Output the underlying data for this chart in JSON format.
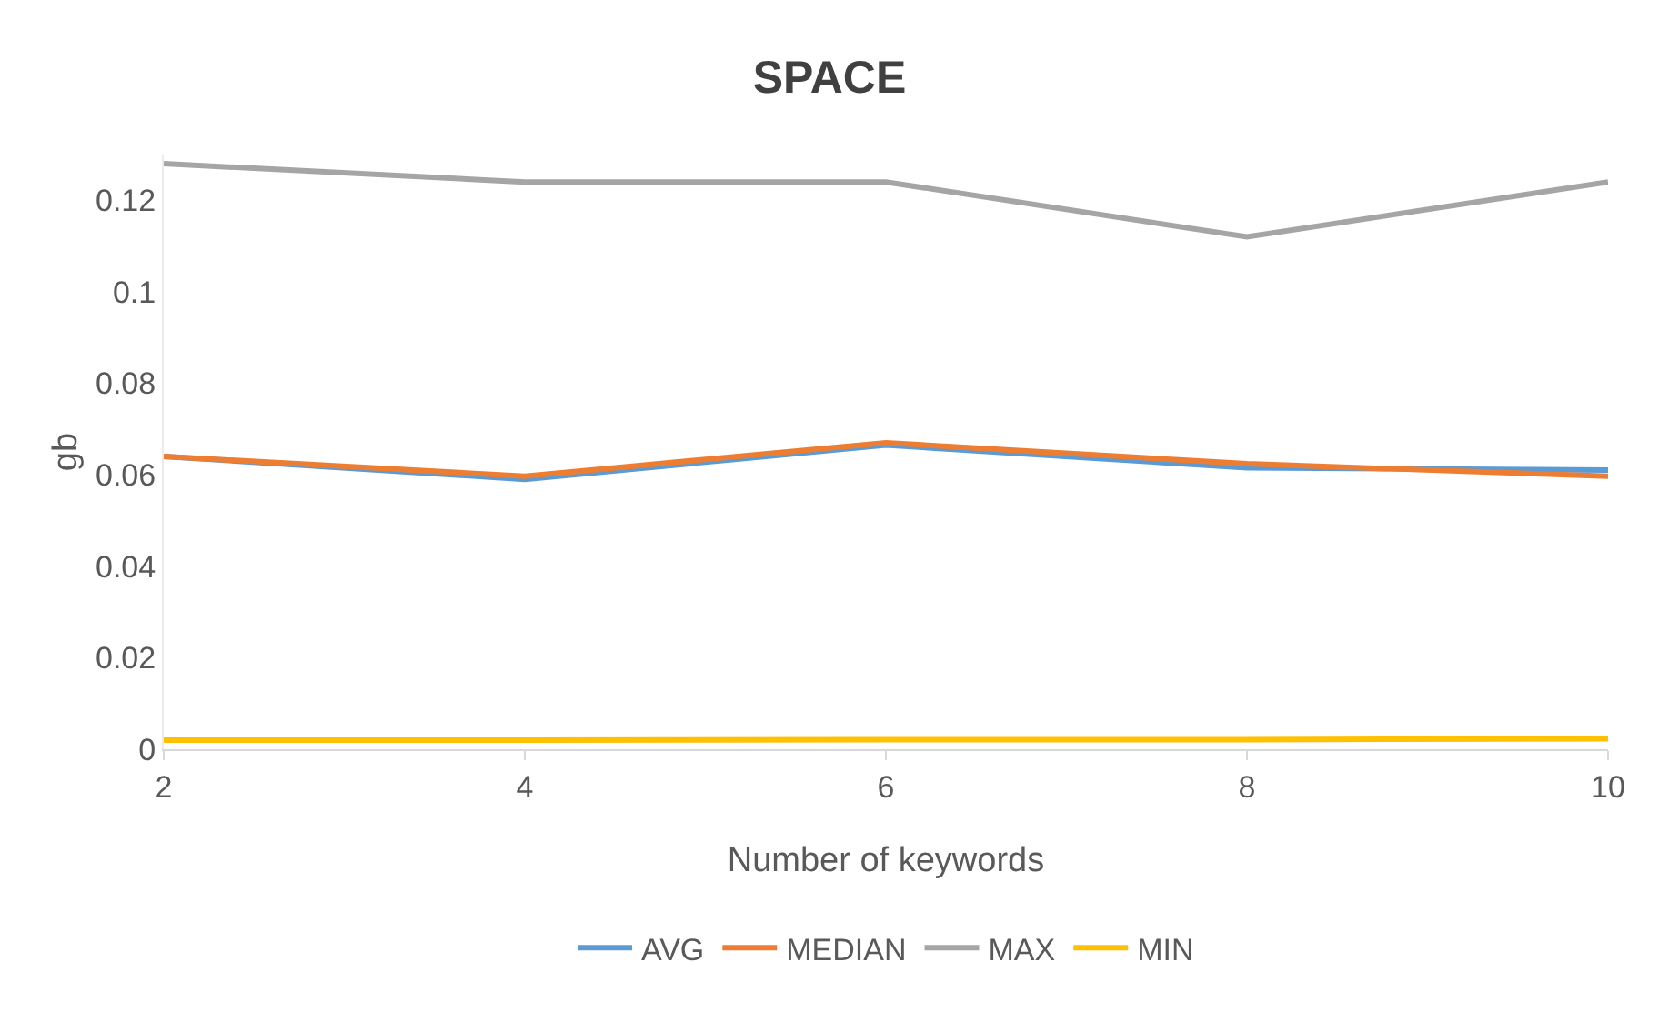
{
  "chart_data": {
    "type": "line",
    "title": "SPACE",
    "xlabel": "Number of keywords",
    "ylabel": "gb",
    "x": [
      2,
      4,
      6,
      8,
      10
    ],
    "series": [
      {
        "name": "AVG",
        "color": "#5b9bd5",
        "values": [
          0.064,
          0.059,
          0.0665,
          0.0615,
          0.061
        ]
      },
      {
        "name": "MEDIAN",
        "color": "#ed7d31",
        "values": [
          0.064,
          0.0597,
          0.067,
          0.0624,
          0.0597
        ]
      },
      {
        "name": "MAX",
        "color": "#a5a5a5",
        "values": [
          0.128,
          0.124,
          0.124,
          0.112,
          0.124
        ]
      },
      {
        "name": "MIN",
        "color": "#ffc000",
        "values": [
          0.002,
          0.002,
          0.0021,
          0.0021,
          0.0023
        ]
      }
    ],
    "xlim": [
      2,
      10
    ],
    "xticks": [
      2,
      4,
      6,
      8,
      10
    ],
    "ylim": [
      0,
      0.13
    ],
    "yticks": [
      0,
      0.02,
      0.04,
      0.06,
      0.08,
      0.1,
      0.12
    ],
    "grid": false,
    "legend": "bottom",
    "marker": "none",
    "line_style": "solid"
  }
}
